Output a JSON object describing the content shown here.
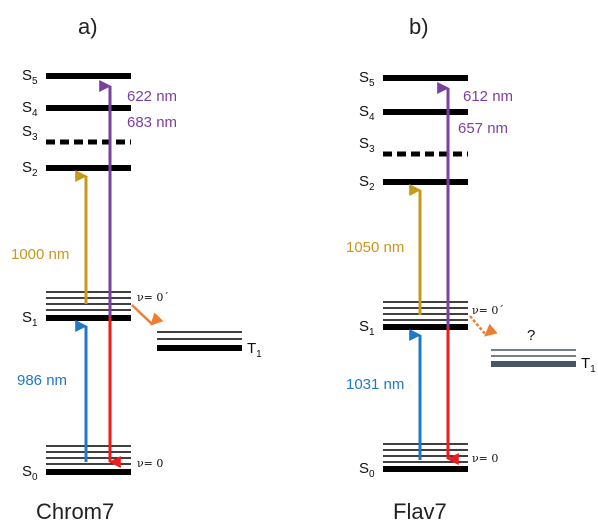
{
  "colors": {
    "gold": "#c8981a",
    "purple": "#7b3fa0",
    "blue": "#1f78c8",
    "red": "#ee1c1c",
    "orange": "#ee7d30",
    "slate": "#475569"
  },
  "panels": {
    "a": {
      "label": "a)",
      "name": "Chrom7",
      "gold_wavelength": "1000 nm",
      "purple_wavelength_1": "622 nm",
      "purple_wavelength_2": "683 nm",
      "blue_wavelength": "986 nm",
      "nu_s1": "ν= 0´",
      "nu_s0": "ν= 0",
      "triplet_label": "T"
    },
    "b": {
      "label": "b)",
      "name": "Flav7",
      "gold_wavelength": "1050 nm",
      "purple_wavelength_1": "612 nm",
      "purple_wavelength_2": "657 nm",
      "blue_wavelength": "1031 nm",
      "nu_s1": "ν= 0´",
      "nu_s0": "ν= 0",
      "question": "?",
      "triplet_label": "T"
    }
  },
  "levels": {
    "letter": "S",
    "s5": "5",
    "s4": "4",
    "s3": "3",
    "s2": "2",
    "s1": "1",
    "s0": "0",
    "t1": "1"
  }
}
